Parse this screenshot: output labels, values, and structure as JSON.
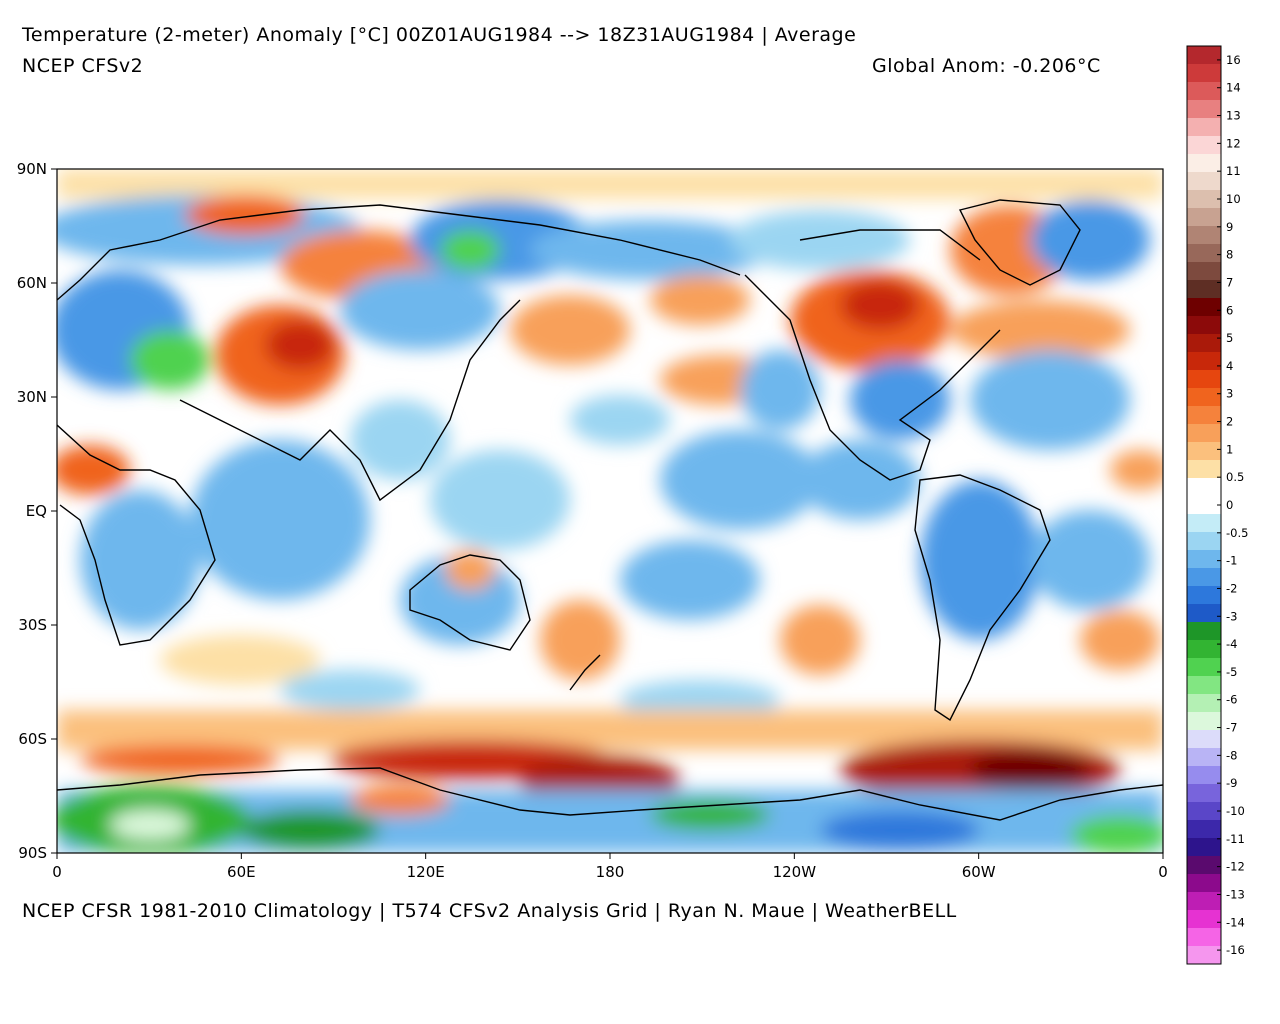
{
  "header": {
    "title": "Temperature (2-meter) Anomaly  [°C] 00Z01AUG1984 --> 18Z31AUG1984 | Average",
    "model": "NCEP CFSv2",
    "global_anom": "Global Anom: -0.206°C"
  },
  "footer": {
    "credits": "NCEP CFSR 1981-2010 Climatology | T574 CFSv2 Analysis Grid | Ryan N. Maue | WeatherBELL"
  },
  "map": {
    "lat_labels": [
      "90N",
      "60N",
      "30N",
      "EQ",
      "30S",
      "60S",
      "90S"
    ],
    "lon_labels": [
      "0",
      "60E",
      "120E",
      "180",
      "120W",
      "60W",
      "0"
    ],
    "ocean_background": "#ffffff"
  },
  "colorbar": {
    "labels": [
      "16",
      "14",
      "13",
      "12",
      "11",
      "10",
      "9",
      "8",
      "7",
      "6",
      "5",
      "4",
      "3",
      "2",
      "1",
      "0.5",
      "0",
      "-0.5",
      "-1",
      "-2",
      "-3",
      "-4",
      "-5",
      "-6",
      "-7",
      "-8",
      "-9",
      "-10",
      "-11",
      "-12",
      "-13",
      "-14",
      "-16"
    ],
    "colors": [
      "#b4282d",
      "#cd3a3a",
      "#dc5a5a",
      "#e88080",
      "#f4b0b0",
      "#fbd6d6",
      "#fbeee6",
      "#eed9cc",
      "#dcbfae",
      "#c8a291",
      "#b08474",
      "#98685a",
      "#7d4a3e",
      "#5e2e24",
      "#6e0000",
      "#8c0a0a",
      "#aa1a0a",
      "#c8280a",
      "#e6460f",
      "#f0641e",
      "#f5823c",
      "#f8a05a",
      "#fbc07d",
      "#fde0a6",
      "#ffffff",
      "#ffffff",
      "#c4ecf7",
      "#9bd5f2",
      "#6eb7ed",
      "#4a98e6",
      "#2d78dc",
      "#1e5ac8",
      "#1e9628",
      "#32b432",
      "#50d250",
      "#82e682",
      "#b4f0b4",
      "#dcf8dc",
      "#dcdcfa",
      "#b9b4f5",
      "#968cee",
      "#7864dc",
      "#5a46c8",
      "#3c28aa",
      "#2d148c",
      "#5a0a6e",
      "#8c0a8c",
      "#be1eb4",
      "#e632d2",
      "#f564e6",
      "#f596ee"
    ]
  }
}
